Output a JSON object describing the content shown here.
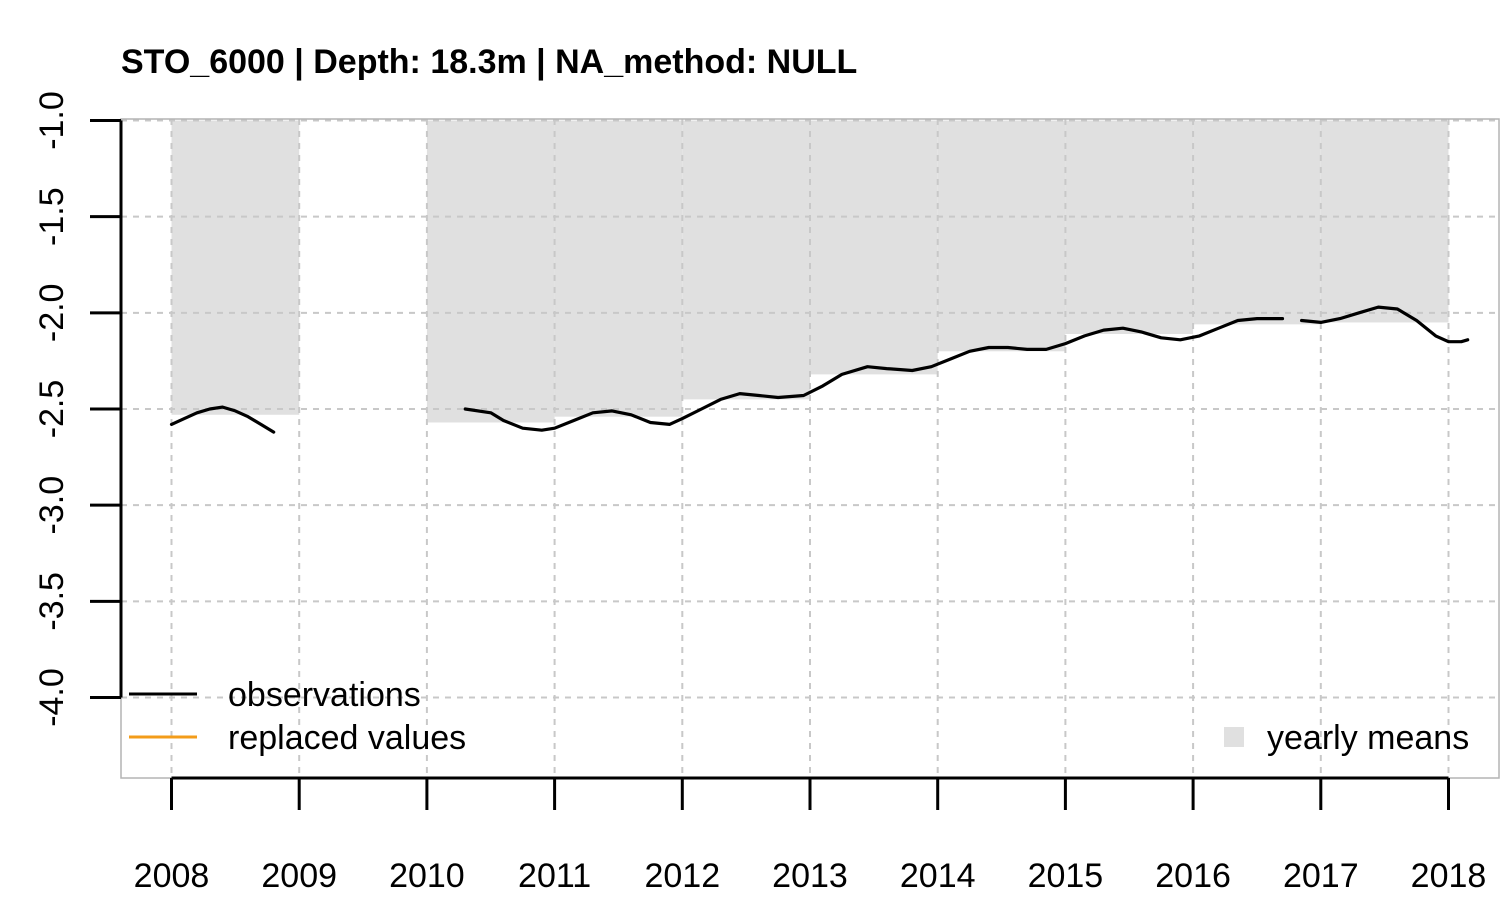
{
  "chart_data": {
    "type": "line",
    "title": "STO_6000 | Depth: 18.3m | NA_method: NULL",
    "xlabel": "",
    "ylabel": "",
    "xlim": [
      2007.6,
      2018.4
    ],
    "ylim": [
      -4.0,
      -1.0
    ],
    "x_ticks": [
      "2008",
      "2009",
      "2010",
      "2011",
      "2012",
      "2013",
      "2014",
      "2015",
      "2016",
      "2017",
      "2018"
    ],
    "y_ticks": [
      "-1.0",
      "-1.5",
      "-2.0",
      "-2.5",
      "-3.0",
      "-3.5",
      "-4.0"
    ],
    "grid": true,
    "yearly_means": [
      {
        "year": 2008,
        "value": -2.53
      },
      {
        "year": 2010,
        "value": -2.57
      },
      {
        "year": 2011,
        "value": -2.54
      },
      {
        "year": 2012,
        "value": -2.45
      },
      {
        "year": 2013,
        "value": -2.32
      },
      {
        "year": 2014,
        "value": -2.2
      },
      {
        "year": 2015,
        "value": -2.11
      },
      {
        "year": 2016,
        "value": -2.06
      },
      {
        "year": 2017,
        "value": -2.05
      }
    ],
    "series": [
      {
        "name": "observations",
        "color": "#000000",
        "segments": [
          [
            [
              2008.0,
              -2.58
            ],
            [
              2008.1,
              -2.55
            ],
            [
              2008.2,
              -2.52
            ],
            [
              2008.3,
              -2.5
            ],
            [
              2008.4,
              -2.49
            ],
            [
              2008.5,
              -2.51
            ],
            [
              2008.6,
              -2.54
            ],
            [
              2008.7,
              -2.58
            ],
            [
              2008.8,
              -2.62
            ]
          ],
          [
            [
              2010.3,
              -2.5
            ],
            [
              2010.5,
              -2.52
            ],
            [
              2010.6,
              -2.56
            ],
            [
              2010.75,
              -2.6
            ],
            [
              2010.9,
              -2.61
            ],
            [
              2011.0,
              -2.6
            ],
            [
              2011.15,
              -2.56
            ],
            [
              2011.3,
              -2.52
            ],
            [
              2011.45,
              -2.51
            ],
            [
              2011.6,
              -2.53
            ],
            [
              2011.75,
              -2.57
            ],
            [
              2011.9,
              -2.58
            ],
            [
              2012.0,
              -2.55
            ],
            [
              2012.15,
              -2.5
            ],
            [
              2012.3,
              -2.45
            ],
            [
              2012.45,
              -2.42
            ],
            [
              2012.6,
              -2.43
            ],
            [
              2012.75,
              -2.44
            ],
            [
              2012.95,
              -2.43
            ],
            [
              2013.1,
              -2.38
            ],
            [
              2013.25,
              -2.32
            ],
            [
              2013.45,
              -2.28
            ],
            [
              2013.6,
              -2.29
            ],
            [
              2013.8,
              -2.3
            ],
            [
              2013.95,
              -2.28
            ],
            [
              2014.1,
              -2.24
            ],
            [
              2014.25,
              -2.2
            ],
            [
              2014.4,
              -2.18
            ],
            [
              2014.55,
              -2.18
            ],
            [
              2014.7,
              -2.19
            ],
            [
              2014.85,
              -2.19
            ],
            [
              2015.0,
              -2.16
            ],
            [
              2015.15,
              -2.12
            ],
            [
              2015.3,
              -2.09
            ],
            [
              2015.45,
              -2.08
            ],
            [
              2015.6,
              -2.1
            ],
            [
              2015.75,
              -2.13
            ],
            [
              2015.9,
              -2.14
            ],
            [
              2016.05,
              -2.12
            ],
            [
              2016.2,
              -2.08
            ],
            [
              2016.35,
              -2.04
            ],
            [
              2016.5,
              -2.03
            ],
            [
              2016.7,
              -2.03
            ]
          ],
          [
            [
              2016.85,
              -2.04
            ],
            [
              2017.0,
              -2.05
            ],
            [
              2017.15,
              -2.03
            ],
            [
              2017.3,
              -2.0
            ],
            [
              2017.45,
              -1.97
            ],
            [
              2017.6,
              -1.98
            ],
            [
              2017.75,
              -2.04
            ],
            [
              2017.9,
              -2.12
            ],
            [
              2018.0,
              -2.15
            ],
            [
              2018.1,
              -2.15
            ],
            [
              2018.15,
              -2.14
            ]
          ]
        ]
      },
      {
        "name": "replaced values",
        "color": "#f39c1a",
        "segments": []
      }
    ],
    "legend": [
      {
        "label": "observations",
        "color": "#000000",
        "kind": "line",
        "position": "bottom-left"
      },
      {
        "label": "replaced values",
        "color": "#f39c1a",
        "kind": "line",
        "position": "bottom-left"
      },
      {
        "label": "yearly means",
        "color": "#e0e0e0",
        "kind": "box",
        "position": "bottom-right"
      }
    ]
  }
}
